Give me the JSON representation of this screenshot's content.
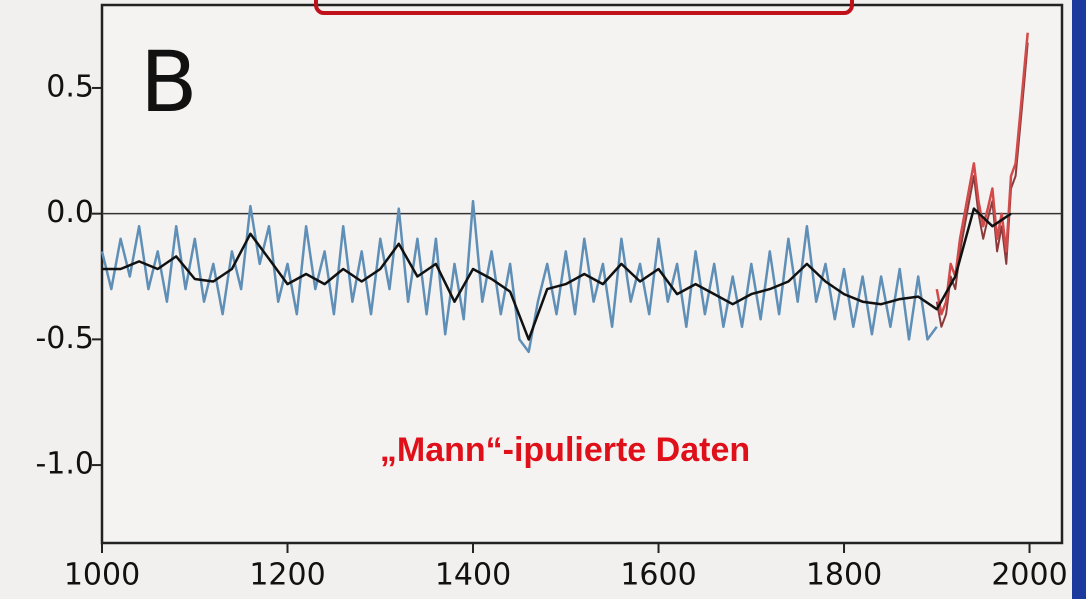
{
  "chart_data": {
    "type": "line",
    "annotations": [
      "B",
      "„Mann“-ipulierte Daten"
    ],
    "xlim": [
      1000,
      2035
    ],
    "xticks": [
      1000,
      1200,
      1400,
      1600,
      1800,
      2000
    ],
    "ylim": [
      -1.31,
      0.83
    ],
    "yticks": [
      0.5,
      {
        "value": 0,
        "label": "0.0"
      },
      -0.5,
      {
        "value": -1,
        "label": "-1.0"
      }
    ],
    "zero_line": true,
    "series": [
      {
        "color": "#5f8fb6",
        "width": 2.5,
        "x": [
          1000,
          1010,
          1020,
          1030,
          1040,
          1050,
          1060,
          1070,
          1080,
          1090,
          1100,
          1110,
          1120,
          1130,
          1140,
          1150,
          1160,
          1170,
          1180,
          1190,
          1200,
          1210,
          1220,
          1230,
          1240,
          1250,
          1260,
          1270,
          1280,
          1290,
          1300,
          1310,
          1320,
          1330,
          1340,
          1350,
          1360,
          1370,
          1380,
          1390,
          1400,
          1410,
          1420,
          1430,
          1440,
          1450,
          1460,
          1470,
          1480,
          1490,
          1500,
          1510,
          1520,
          1530,
          1540,
          1550,
          1560,
          1570,
          1580,
          1590,
          1600,
          1610,
          1620,
          1630,
          1640,
          1650,
          1660,
          1670,
          1680,
          1690,
          1700,
          1710,
          1720,
          1730,
          1740,
          1750,
          1760,
          1770,
          1780,
          1790,
          1800,
          1810,
          1820,
          1830,
          1840,
          1850,
          1860,
          1870,
          1880,
          1890,
          1900
        ],
        "values": [
          -0.15,
          -0.3,
          -0.1,
          -0.25,
          -0.05,
          -0.3,
          -0.15,
          -0.35,
          -0.05,
          -0.3,
          -0.1,
          -0.35,
          -0.2,
          -0.4,
          -0.15,
          -0.3,
          0.03,
          -0.2,
          -0.05,
          -0.35,
          -0.2,
          -0.4,
          -0.05,
          -0.3,
          -0.15,
          -0.4,
          -0.05,
          -0.35,
          -0.15,
          -0.4,
          -0.1,
          -0.3,
          0.02,
          -0.35,
          -0.1,
          -0.4,
          -0.1,
          -0.48,
          -0.2,
          -0.42,
          0.05,
          -0.35,
          -0.15,
          -0.4,
          -0.2,
          -0.5,
          -0.55,
          -0.35,
          -0.2,
          -0.4,
          -0.15,
          -0.4,
          -0.1,
          -0.35,
          -0.2,
          -0.45,
          -0.1,
          -0.35,
          -0.2,
          -0.4,
          -0.1,
          -0.35,
          -0.2,
          -0.45,
          -0.15,
          -0.4,
          -0.2,
          -0.45,
          -0.25,
          -0.45,
          -0.2,
          -0.42,
          -0.15,
          -0.4,
          -0.1,
          -0.35,
          -0.05,
          -0.35,
          -0.2,
          -0.42,
          -0.22,
          -0.45,
          -0.25,
          -0.48,
          -0.25,
          -0.45,
          -0.22,
          -0.5,
          -0.25,
          -0.5,
          -0.45
        ]
      },
      {
        "color": "#8a3a3a",
        "width": 2,
        "x": [
          1900,
          1905,
          1910,
          1915,
          1920,
          1925,
          1930,
          1935,
          1940,
          1945,
          1950,
          1955,
          1960,
          1965,
          1970,
          1975,
          1980,
          1985,
          1990,
          1995,
          1998
        ],
        "values": [
          -0.35,
          -0.45,
          -0.4,
          -0.25,
          -0.3,
          -0.15,
          -0.05,
          0.05,
          0.15,
          0,
          -0.1,
          -0.02,
          0.05,
          -0.15,
          -0.05,
          -0.2,
          0.1,
          0.15,
          0.35,
          0.55,
          0.68
        ]
      },
      {
        "color": "#d24a4a",
        "width": 2.5,
        "x": [
          1900,
          1905,
          1910,
          1915,
          1920,
          1925,
          1930,
          1935,
          1940,
          1945,
          1950,
          1955,
          1960,
          1965,
          1970,
          1975,
          1980,
          1985,
          1990,
          1995,
          1998
        ],
        "values": [
          -0.3,
          -0.4,
          -0.35,
          -0.2,
          -0.25,
          -0.1,
          0,
          0.1,
          0.2,
          0.05,
          -0.05,
          0.02,
          0.1,
          -0.1,
          0,
          -0.15,
          0.15,
          0.2,
          0.4,
          0.6,
          0.72
        ]
      },
      {
        "color": "#111111",
        "width": 2.5,
        "x": [
          1000,
          1020,
          1040,
          1060,
          1080,
          1100,
          1120,
          1140,
          1160,
          1180,
          1200,
          1220,
          1240,
          1260,
          1280,
          1300,
          1320,
          1340,
          1360,
          1380,
          1400,
          1420,
          1440,
          1460,
          1480,
          1500,
          1520,
          1540,
          1560,
          1580,
          1600,
          1620,
          1640,
          1660,
          1680,
          1700,
          1720,
          1740,
          1760,
          1780,
          1800,
          1820,
          1840,
          1860,
          1880,
          1900,
          1920,
          1940,
          1960,
          1980
        ],
        "values": [
          -0.22,
          -0.22,
          -0.19,
          -0.22,
          -0.17,
          -0.26,
          -0.27,
          -0.22,
          -0.08,
          -0.18,
          -0.28,
          -0.24,
          -0.28,
          -0.22,
          -0.27,
          -0.22,
          -0.12,
          -0.25,
          -0.2,
          -0.35,
          -0.22,
          -0.26,
          -0.31,
          -0.5,
          -0.3,
          -0.28,
          -0.24,
          -0.28,
          -0.2,
          -0.27,
          -0.22,
          -0.32,
          -0.28,
          -0.32,
          -0.36,
          -0.32,
          -0.3,
          -0.27,
          -0.2,
          -0.27,
          -0.32,
          -0.35,
          -0.36,
          -0.34,
          -0.33,
          -0.38,
          -0.25,
          0.02,
          -0.05,
          0
        ]
      }
    ]
  }
}
